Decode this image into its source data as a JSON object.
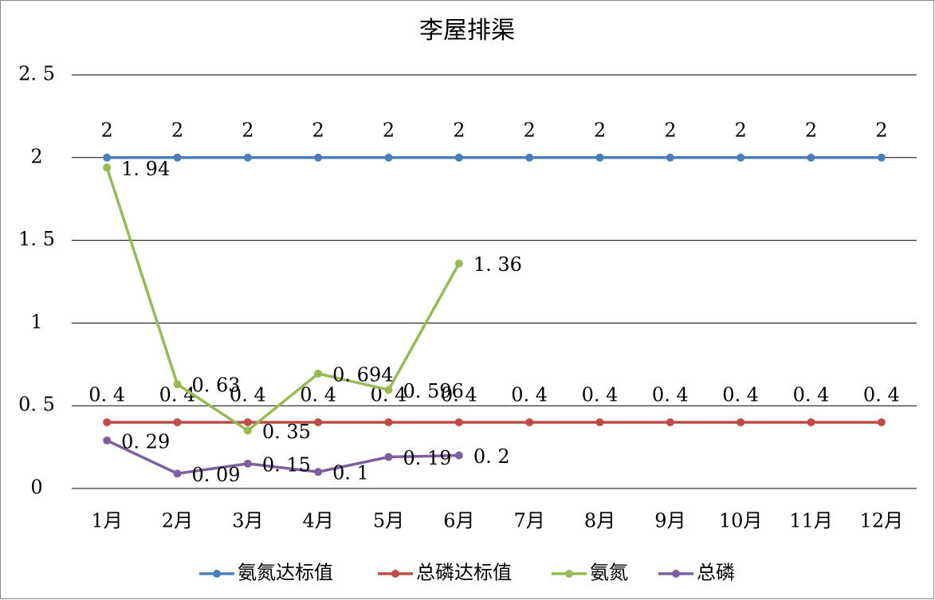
{
  "chart_data": {
    "type": "line",
    "title": "李屋排渠",
    "categories": [
      "1月",
      "2月",
      "3月",
      "4月",
      "5月",
      "6月",
      "7月",
      "8月",
      "9月",
      "10月",
      "11月",
      "12月"
    ],
    "series": [
      {
        "name": "氨氮达标值",
        "color": "#4a7ebb",
        "values": [
          2,
          2,
          2,
          2,
          2,
          2,
          2,
          2,
          2,
          2,
          2,
          2
        ]
      },
      {
        "name": "总磷达标值",
        "color": "#be4b48",
        "values": [
          0.4,
          0.4,
          0.4,
          0.4,
          0.4,
          0.4,
          0.4,
          0.4,
          0.4,
          0.4,
          0.4,
          0.4
        ],
        "value_labels": [
          "0. 4",
          "0. 4",
          "0. 4",
          "0. 4",
          "0. 4",
          "0. 4",
          "0. 4",
          "0. 4",
          "0. 4",
          "0. 4",
          "0. 4",
          "0. 4"
        ]
      },
      {
        "name": "氨氮",
        "color": "#98b954",
        "values": [
          1.94,
          0.63,
          0.35,
          0.694,
          0.596,
          1.36,
          null,
          null,
          null,
          null,
          null,
          null
        ],
        "value_labels": [
          "1. 94",
          "0. 63",
          "0. 35",
          "0. 694",
          "0. 596",
          "1. 36",
          null,
          null,
          null,
          null,
          null,
          null
        ]
      },
      {
        "name": "总磷",
        "color": "#7d5fa0",
        "values": [
          0.29,
          0.09,
          0.15,
          0.1,
          0.19,
          0.2,
          null,
          null,
          null,
          null,
          null,
          null
        ],
        "value_labels": [
          "0. 29",
          "0. 09",
          "0. 15",
          "0. 1",
          "0. 19",
          "0. 2",
          null,
          null,
          null,
          null,
          null,
          null
        ]
      }
    ],
    "ylim": [
      0,
      2.5
    ],
    "yticks": [
      0,
      {
        "value": 0.5,
        "label": "0. 5"
      },
      1,
      {
        "value": 1.5,
        "label": "1. 5"
      },
      2,
      {
        "value": 2.5,
        "label": "2. 5"
      }
    ],
    "grid": true,
    "legend": "bottom"
  }
}
